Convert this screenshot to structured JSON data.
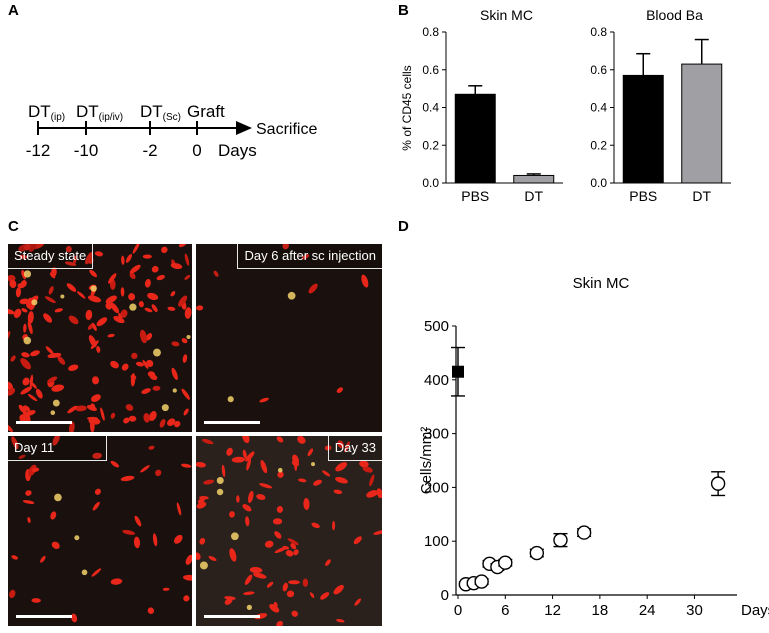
{
  "panels": {
    "a": {
      "letter": "A",
      "timeline": [
        {
          "main": "DT",
          "sub": "(ip)",
          "day": "-12"
        },
        {
          "main": "DT",
          "sub": "(ip/iv)",
          "day": "-10"
        },
        {
          "main": "DT",
          "sub": "(Sc)",
          "day": "-2"
        },
        {
          "main": "Graft",
          "sub": "",
          "day": "0"
        }
      ],
      "end_label": "Sacrifice",
      "unit_label": "Days"
    },
    "b": {
      "letter": "B",
      "ylabel": "% of CD45 cells"
    },
    "c": {
      "letter": "C",
      "images": [
        {
          "label": "Steady state",
          "density": 1.0
        },
        {
          "label": "Day 6 after sc injection",
          "density": 0.05
        },
        {
          "label": "Day 11",
          "density": 0.25
        },
        {
          "label": "Day 33",
          "density": 0.55
        }
      ]
    },
    "d": {
      "letter": "D"
    }
  },
  "chart_data": [
    {
      "type": "bar",
      "title": "Skin MC",
      "ylabel": "% of CD45 cells",
      "categories": [
        "PBS",
        "DT"
      ],
      "values": [
        0.47,
        0.04
      ],
      "errors": [
        0.045,
        0.008
      ],
      "colors": [
        "#000000",
        "#a0a0a4"
      ],
      "ylim": [
        0,
        0.8
      ],
      "yticks": [
        "0.0",
        "0.2",
        "0.4",
        "0.6",
        "0.8"
      ]
    },
    {
      "type": "bar",
      "title": "Blood Ba",
      "ylabel": "",
      "categories": [
        "PBS",
        "DT"
      ],
      "values": [
        0.57,
        0.63
      ],
      "errors": [
        0.115,
        0.13
      ],
      "colors": [
        "#000000",
        "#a0a0a4"
      ],
      "ylim": [
        0,
        0.8
      ],
      "yticks": [
        "0.0",
        "0.2",
        "0.4",
        "0.6",
        "0.8"
      ]
    },
    {
      "type": "scatter",
      "title": "Skin MC",
      "xlabel": "Days",
      "ylabel": "Cells/mm²",
      "xlim": [
        0,
        34
      ],
      "ylim": [
        0,
        500
      ],
      "xticks": [
        "0",
        "6",
        "12",
        "18",
        "24",
        "30"
      ],
      "yticks": [
        "0",
        "100",
        "200",
        "300",
        "400",
        "500"
      ],
      "series": [
        {
          "marker": "filled-square",
          "x": [
            0
          ],
          "y": [
            415
          ],
          "err": [
            45
          ]
        },
        {
          "marker": "open-circle",
          "x": [
            1,
            2,
            3,
            4,
            5,
            6,
            10,
            13,
            16,
            33
          ],
          "y": [
            20,
            22,
            25,
            58,
            52,
            60,
            78,
            102,
            116,
            207
          ],
          "err": [
            4,
            4,
            5,
            6,
            6,
            6,
            7,
            12,
            7,
            22
          ]
        }
      ]
    }
  ]
}
